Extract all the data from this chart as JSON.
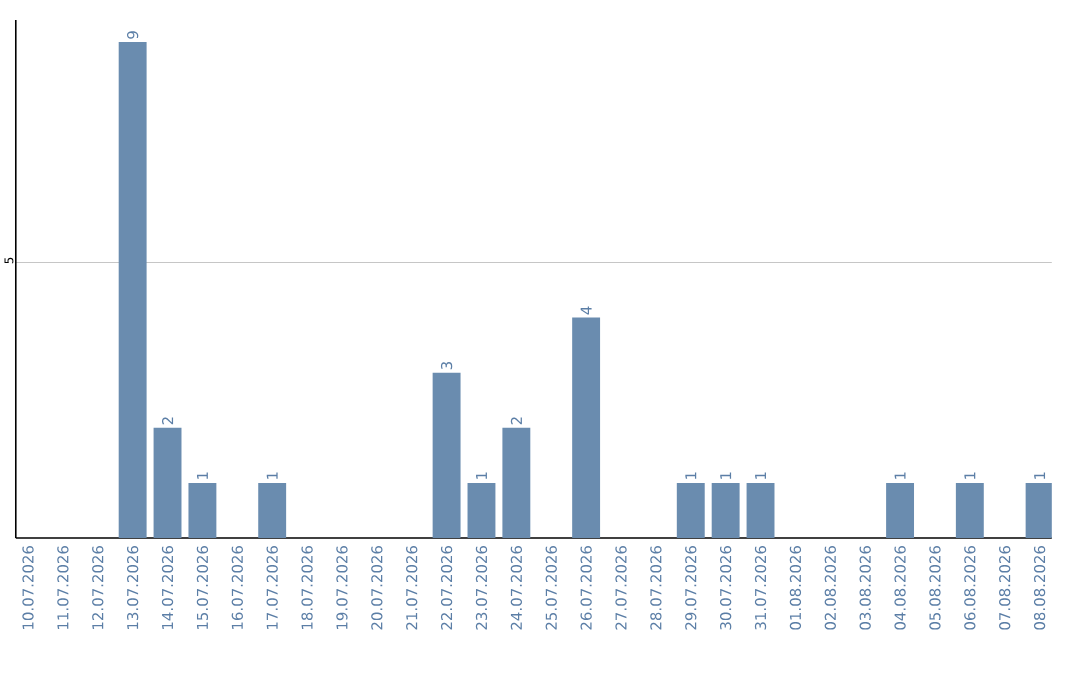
{
  "chart_data": {
    "type": "bar",
    "categories": [
      "10.07.2026",
      "11.07.2026",
      "12.07.2026",
      "13.07.2026",
      "14.07.2026",
      "15.07.2026",
      "16.07.2026",
      "17.07.2026",
      "18.07.2026",
      "19.07.2026",
      "20.07.2026",
      "21.07.2026",
      "22.07.2026",
      "23.07.2026",
      "24.07.2026",
      "25.07.2026",
      "26.07.2026",
      "27.07.2026",
      "28.07.2026",
      "29.07.2026",
      "30.07.2026",
      "31.07.2026",
      "01.08.2026",
      "02.08.2026",
      "03.08.2026",
      "04.08.2026",
      "05.08.2026",
      "06.08.2026",
      "07.08.2026",
      "08.08.2026"
    ],
    "values": [
      0,
      0,
      0,
      9,
      2,
      1,
      0,
      1,
      0,
      0,
      0,
      0,
      3,
      1,
      2,
      0,
      4,
      0,
      0,
      1,
      1,
      1,
      0,
      0,
      0,
      1,
      0,
      1,
      0,
      1
    ],
    "value_labels": [
      null,
      null,
      null,
      "9",
      "2",
      "1",
      null,
      "1",
      null,
      null,
      null,
      null,
      "3",
      "1",
      "2",
      null,
      "4",
      null,
      null,
      "1",
      "1",
      "1",
      null,
      null,
      null,
      "1",
      null,
      "1",
      null,
      "1"
    ],
    "color": "#6a8caf",
    "ylim": [
      0,
      9.4
    ],
    "yticks": [
      5
    ],
    "grid": "y"
  }
}
